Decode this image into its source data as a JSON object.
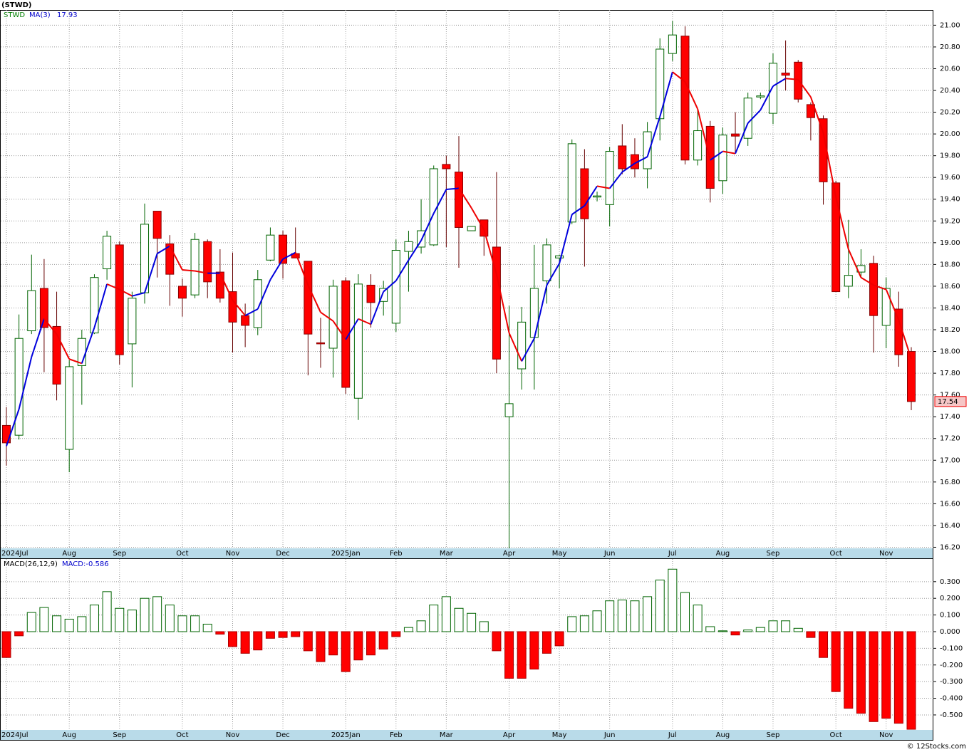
{
  "chart_data": [
    {
      "type": "candlestick",
      "title": "(STWD)",
      "ticker": "STWD",
      "categories": [
        "2024Jul",
        null,
        null,
        null,
        null,
        "Aug",
        null,
        null,
        null,
        "Sep",
        null,
        null,
        null,
        null,
        "Oct",
        null,
        null,
        null,
        "Nov",
        null,
        null,
        null,
        "Dec",
        null,
        null,
        null,
        null,
        "2025Jan",
        null,
        null,
        null,
        "Feb",
        null,
        null,
        null,
        "Mar",
        null,
        null,
        null,
        null,
        "Apr",
        null,
        null,
        null,
        "May",
        null,
        null,
        null,
        "Jun",
        null,
        null,
        null,
        null,
        "Jul",
        null,
        null,
        null,
        "Aug",
        null,
        null,
        null,
        "Sep",
        null,
        null,
        null,
        null,
        "Oct",
        null,
        null,
        null,
        "Nov",
        null,
        null
      ],
      "open": [
        17.32,
        17.23,
        18.19,
        18.58,
        18.23,
        17.1,
        17.87,
        18.17,
        18.76,
        18.98,
        18.07,
        18.54,
        19.29,
        18.99,
        18.6,
        18.52,
        19.01,
        18.73,
        18.55,
        18.33,
        18.22,
        18.84,
        19.07,
        18.9,
        18.83,
        18.08,
        18.03,
        18.65,
        17.57,
        18.61,
        18.46,
        18.26,
        18.92,
        18.96,
        18.98,
        19.72,
        19.65,
        19.11,
        19.21,
        18.96,
        17.4,
        17.84,
        18.13,
        18.65,
        18.86,
        19.19,
        19.68,
        19.42,
        19.35,
        19.89,
        19.81,
        19.68,
        20.14,
        20.74,
        20.9,
        19.76,
        20.07,
        19.57,
        20.0,
        19.96,
        20.34,
        20.19,
        20.56,
        20.66,
        20.27,
        20.14,
        19.55,
        18.6,
        18.73,
        18.81,
        18.24,
        18.39,
        18.0
      ],
      "high": [
        17.49,
        18.34,
        18.89,
        18.85,
        18.55,
        17.92,
        18.2,
        18.71,
        19.11,
        19.01,
        18.55,
        19.36,
        19.29,
        19.07,
        18.67,
        19.09,
        19.03,
        18.94,
        18.91,
        18.44,
        18.75,
        19.14,
        19.11,
        19.14,
        18.83,
        18.31,
        18.66,
        18.68,
        18.71,
        18.71,
        18.65,
        19.03,
        19.11,
        19.4,
        19.71,
        19.8,
        19.98,
        19.15,
        19.21,
        19.65,
        18.42,
        18.41,
        18.98,
        19.04,
        18.89,
        19.95,
        19.86,
        19.47,
        19.88,
        20.09,
        19.96,
        20.11,
        20.88,
        21.04,
        20.99,
        20.22,
        20.12,
        20.06,
        20.2,
        20.38,
        20.38,
        20.74,
        20.86,
        20.68,
        20.29,
        20.17,
        19.57,
        19.21,
        18.94,
        18.88,
        18.68,
        18.55,
        18.04
      ],
      "low": [
        16.95,
        17.19,
        18.16,
        17.81,
        17.55,
        16.89,
        17.51,
        18.16,
        18.66,
        17.88,
        17.67,
        18.44,
        18.68,
        18.42,
        18.32,
        18.49,
        18.49,
        18.45,
        17.99,
        18.04,
        18.15,
        18.83,
        18.67,
        18.86,
        17.78,
        17.85,
        17.76,
        17.61,
        17.37,
        18.22,
        18.33,
        18.18,
        18.55,
        18.9,
        18.97,
        18.96,
        18.77,
        19.11,
        18.88,
        17.8,
        16.19,
        17.65,
        17.65,
        18.44,
        18.58,
        19.17,
        18.78,
        19.38,
        19.15,
        19.63,
        19.6,
        19.5,
        19.94,
        20.67,
        19.72,
        19.71,
        19.37,
        19.45,
        19.83,
        19.89,
        20.32,
        20.09,
        20.4,
        20.29,
        19.94,
        19.35,
        18.55,
        18.49,
        18.68,
        17.99,
        18.03,
        17.86,
        17.46
      ],
      "close": [
        17.16,
        18.12,
        18.56,
        18.22,
        17.7,
        17.86,
        18.12,
        18.68,
        19.06,
        17.97,
        18.49,
        19.17,
        19.04,
        18.71,
        18.49,
        19.03,
        18.64,
        18.49,
        18.27,
        18.24,
        18.66,
        19.07,
        18.81,
        18.86,
        18.16,
        18.07,
        18.6,
        17.67,
        18.62,
        18.45,
        18.58,
        18.93,
        19.01,
        19.11,
        19.68,
        19.68,
        19.14,
        19.15,
        19.06,
        17.93,
        17.52,
        18.27,
        18.58,
        18.98,
        18.88,
        19.91,
        19.22,
        19.43,
        19.84,
        19.68,
        19.68,
        20.02,
        20.78,
        20.91,
        19.76,
        20.03,
        19.5,
        19.99,
        19.98,
        20.33,
        20.35,
        20.65,
        20.54,
        20.32,
        20.15,
        19.56,
        18.55,
        18.7,
        18.79,
        18.33,
        18.58,
        17.97,
        17.54
      ],
      "up_color": "#006400",
      "down_color": "#ff0000",
      "ma": {
        "name": "MA(3)",
        "up_color": "#0000dd",
        "down_color": "#ee0000",
        "values": [
          17.13,
          17.47,
          17.95,
          18.3,
          18.16,
          17.93,
          17.89,
          18.22,
          18.62,
          18.57,
          18.51,
          18.54,
          18.9,
          18.97,
          18.75,
          18.74,
          18.72,
          18.72,
          18.47,
          18.33,
          18.39,
          18.66,
          18.85,
          18.91,
          18.61,
          18.36,
          18.28,
          18.11,
          18.3,
          18.25,
          18.55,
          18.65,
          18.84,
          19.02,
          19.27,
          19.49,
          19.5,
          19.32,
          19.12,
          18.71,
          18.17,
          17.91,
          18.12,
          18.61,
          18.81,
          19.26,
          19.34,
          19.52,
          19.5,
          19.65,
          19.73,
          19.79,
          20.16,
          20.57,
          20.48,
          20.23,
          19.76,
          19.84,
          19.82,
          20.1,
          20.22,
          20.44,
          20.51,
          20.5,
          20.34,
          20.01,
          19.42,
          18.94,
          18.68,
          18.61,
          18.57,
          18.29,
          17.93
        ]
      },
      "ylim": [
        16.19,
        21.14
      ],
      "yticks": [
        {
          "value": 16.2,
          "label": "16.20"
        },
        {
          "value": 16.4,
          "label": "16.40"
        },
        {
          "value": 16.6,
          "label": "16.60"
        },
        {
          "value": 16.8,
          "label": "16.80"
        },
        {
          "value": 17.0,
          "label": "17.00"
        },
        {
          "value": 17.2,
          "label": "17.20"
        },
        {
          "value": 17.4,
          "label": "17.40"
        },
        {
          "value": 17.6,
          "label": "17.60"
        },
        {
          "value": 17.8,
          "label": "17.80"
        },
        {
          "value": 18.0,
          "label": "18.00"
        },
        {
          "value": 18.2,
          "label": "18.20"
        },
        {
          "value": 18.4,
          "label": "18.40"
        },
        {
          "value": 18.6,
          "label": "18.60"
        },
        {
          "value": 18.8,
          "label": "18.80"
        },
        {
          "value": 19.0,
          "label": "19.00"
        },
        {
          "value": 19.2,
          "label": "19.20"
        },
        {
          "value": 19.4,
          "label": "19.40"
        },
        {
          "value": 19.6,
          "label": "19.60"
        },
        {
          "value": 19.8,
          "label": "19.80"
        },
        {
          "value": 20.0,
          "label": "20.00"
        },
        {
          "value": 20.2,
          "label": "20.20"
        },
        {
          "value": 20.4,
          "label": "20.40"
        },
        {
          "value": 20.6,
          "label": "20.60"
        },
        {
          "value": 20.8,
          "label": "20.80"
        },
        {
          "value": 21.0,
          "label": "21.00"
        }
      ],
      "grid": true
    },
    {
      "type": "bar",
      "title": "MACD(26,12,9)",
      "value_label": "MACD:-0.586",
      "categories": [
        "2024Jul",
        null,
        null,
        null,
        null,
        "Aug",
        null,
        null,
        null,
        "Sep",
        null,
        null,
        null,
        null,
        "Oct",
        null,
        null,
        null,
        "Nov",
        null,
        null,
        null,
        "Dec",
        null,
        null,
        null,
        null,
        "2025Jan",
        null,
        null,
        null,
        "Feb",
        null,
        null,
        null,
        "Mar",
        null,
        null,
        null,
        null,
        "Apr",
        null,
        null,
        null,
        "May",
        null,
        null,
        null,
        "Jun",
        null,
        null,
        null,
        null,
        "Jul",
        null,
        null,
        null,
        "Aug",
        null,
        null,
        null,
        "Sep",
        null,
        null,
        null,
        null,
        "Oct",
        null,
        null,
        null,
        "Nov",
        null,
        null
      ],
      "values": [
        -0.155,
        -0.025,
        0.115,
        0.145,
        0.095,
        0.075,
        0.09,
        0.16,
        0.24,
        0.14,
        0.13,
        0.2,
        0.21,
        0.16,
        0.095,
        0.095,
        0.045,
        -0.015,
        -0.09,
        -0.13,
        -0.11,
        -0.04,
        -0.035,
        -0.03,
        -0.115,
        -0.18,
        -0.14,
        -0.24,
        -0.17,
        -0.14,
        -0.105,
        -0.03,
        0.025,
        0.065,
        0.16,
        0.21,
        0.14,
        0.11,
        0.06,
        -0.115,
        -0.28,
        -0.28,
        -0.225,
        -0.13,
        -0.085,
        0.09,
        0.095,
        0.125,
        0.185,
        0.19,
        0.185,
        0.21,
        0.31,
        0.375,
        0.235,
        0.16,
        0.03,
        0.005,
        -0.02,
        0.01,
        0.025,
        0.065,
        0.065,
        0.02,
        -0.035,
        -0.155,
        -0.36,
        -0.46,
        -0.49,
        -0.54,
        -0.52,
        -0.55,
        -0.586
      ],
      "up_color": "#006400",
      "down_color": "#ff0000",
      "ylim": [
        -0.59,
        0.436
      ],
      "yticks": [
        {
          "value": -0.5,
          "label": "-0.500"
        },
        {
          "value": -0.4,
          "label": "-0.400"
        },
        {
          "value": -0.3,
          "label": "-0.300"
        },
        {
          "value": -0.2,
          "label": "-0.200"
        },
        {
          "value": -0.1,
          "label": "-0.100"
        },
        {
          "value": 0,
          "label": "0.000"
        },
        {
          "value": 0.1,
          "label": "0.100"
        },
        {
          "value": 0.2,
          "label": "0.200"
        },
        {
          "value": 0.3,
          "label": "0.300"
        }
      ],
      "grid": true
    }
  ],
  "footer": "© 12Stocks.com"
}
